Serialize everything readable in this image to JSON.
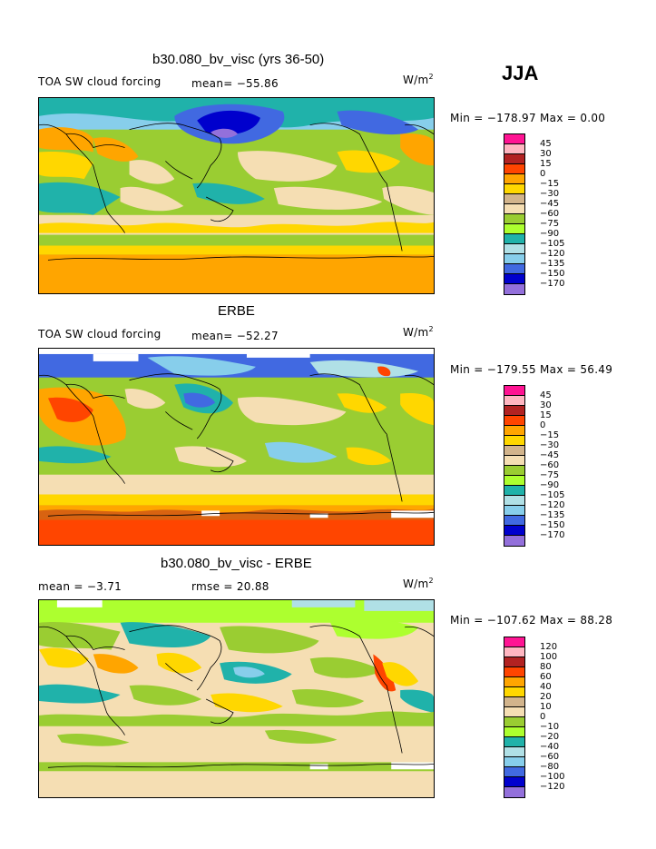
{
  "season": "JJA",
  "palette": [
    "#ff1493",
    "#ffb6c1",
    "#b22222",
    "#ff4500",
    "#ffa500",
    "#ffd700",
    "#d2b48c",
    "#f5deb3",
    "#9acd32",
    "#adff2f",
    "#20b2aa",
    "#b0e0e6",
    "#87ceeb",
    "#4169e1",
    "#0000cd",
    "#9370db"
  ],
  "panels": [
    {
      "title": "b30.080_bv_visc (yrs 36-50)",
      "left_label": "TOA SW cloud forcing",
      "stat_label": "mean= −55.86",
      "units": "W/m",
      "units_sup": "2",
      "minmax": "Min = −178.97 Max =    0.00",
      "levels": [
        "45",
        "30",
        "15",
        "0",
        "−15",
        "−30",
        "−45",
        "−60",
        "−75",
        "−90",
        "−105",
        "−120",
        "−135",
        "−150",
        "−170"
      ]
    },
    {
      "title": "ERBE",
      "left_label": "TOA SW cloud forcing",
      "stat_label": "mean= −52.27",
      "units": "W/m",
      "units_sup": "2",
      "minmax": "Min = −179.55 Max =  56.49",
      "levels": [
        "45",
        "30",
        "15",
        "0",
        "−15",
        "−30",
        "−45",
        "−60",
        "−75",
        "−90",
        "−105",
        "−120",
        "−135",
        "−150",
        "−170"
      ]
    },
    {
      "title": "b30.080_bv_visc - ERBE",
      "left_label": "mean =  −3.71",
      "stat_label": "rmse =  20.88",
      "units": "W/m",
      "units_sup": "2",
      "minmax": "Min = −107.62 Max =  88.28",
      "levels": [
        "120",
        "100",
        "80",
        "60",
        "40",
        "20",
        "10",
        "0",
        "−10",
        "−20",
        "−40",
        "−60",
        "−80",
        "−100",
        "−120"
      ]
    }
  ]
}
